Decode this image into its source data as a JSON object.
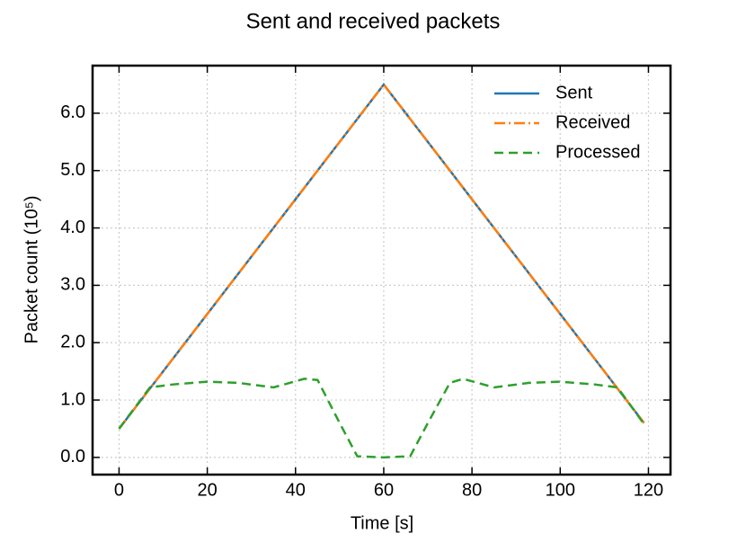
{
  "chart_data": {
    "type": "line",
    "title": "Sent and received packets",
    "xlabel": "Time [s]",
    "ylabel": "Packet count (10⁵)",
    "x": [
      0,
      7,
      12,
      20,
      27,
      35,
      42,
      45,
      50,
      54,
      60,
      66,
      70,
      75,
      78,
      85,
      93,
      100,
      108,
      113,
      119
    ],
    "series": [
      {
        "name": "Sent",
        "color": "#1f77b4",
        "linestyle": "solid",
        "values": [
          0.5,
          1.2,
          1.7,
          2.5,
          3.2,
          4.0,
          4.7,
          5.0,
          5.5,
          5.9,
          6.5,
          5.9,
          5.5,
          5.0,
          4.7,
          4.0,
          3.2,
          2.5,
          1.7,
          1.2,
          0.6
        ]
      },
      {
        "name": "Received",
        "color": "#ff7f0e",
        "linestyle": "dashdot",
        "values": [
          0.5,
          1.2,
          1.7,
          2.5,
          3.2,
          4.0,
          4.7,
          5.0,
          5.5,
          5.9,
          6.5,
          5.9,
          5.5,
          5.0,
          4.7,
          4.0,
          3.2,
          2.5,
          1.7,
          1.2,
          0.6
        ]
      },
      {
        "name": "Processed",
        "color": "#2ca02c",
        "linestyle": "dashed",
        "values": [
          0.5,
          1.22,
          1.27,
          1.32,
          1.3,
          1.22,
          1.37,
          1.35,
          0.6,
          0.02,
          0.0,
          0.02,
          0.6,
          1.3,
          1.37,
          1.22,
          1.3,
          1.32,
          1.27,
          1.22,
          0.58
        ]
      }
    ],
    "xlim": [
      -6,
      125
    ],
    "xticks": [
      0,
      20,
      40,
      60,
      80,
      100,
      120
    ],
    "ylim": [
      -0.3,
      6.83
    ],
    "yticks": [
      {
        "value": 0,
        "label": "0.0"
      },
      {
        "value": 1,
        "label": "1.0"
      },
      {
        "value": 2,
        "label": "2.0"
      },
      {
        "value": 3,
        "label": "3.0"
      },
      {
        "value": 4,
        "label": "4.0"
      },
      {
        "value": 5,
        "label": "5.0"
      },
      {
        "value": 6,
        "label": "6.0"
      }
    ],
    "grid": true,
    "legend": "upper right"
  }
}
